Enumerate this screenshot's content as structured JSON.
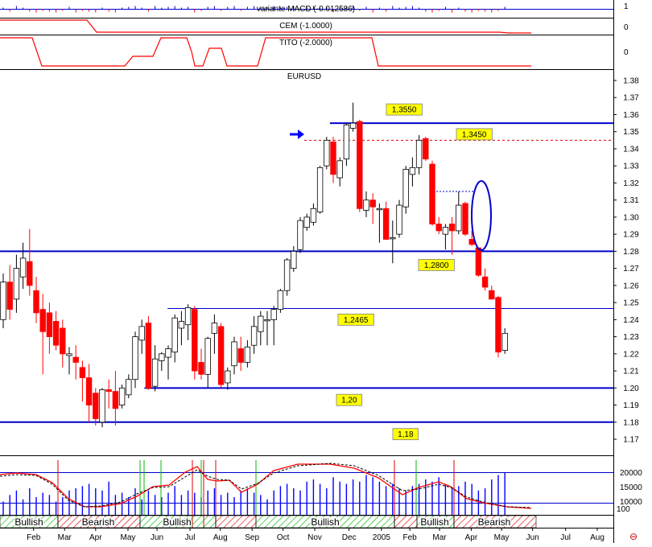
{
  "panels": {
    "macd_title": "variante MACD (-0.012586)",
    "cem_title": "CEM (-1.0000)",
    "tito_title": "TITO (-2.0000)",
    "macd_axis": [
      "1",
      "0"
    ],
    "cem_axis": [
      "0"
    ],
    "tito_axis": [
      "0"
    ],
    "main_title": "EURUSD"
  },
  "colors": {
    "up_candle": "#ffffff",
    "down_candle": "#ff0000",
    "level_line": "#0000cc",
    "resistance_dotted": "#e00000",
    "label_bg": "#ffff00",
    "ma_red": "#ff0000",
    "ma_dashed": "#000000",
    "volume": "#0000ff",
    "bullish_green": "#00bb00",
    "bearish_red": "#dd0000"
  },
  "chart_data": {
    "type": "candlestick",
    "title": "EURUSD",
    "ylim": [
      1.16,
      1.385
    ],
    "y_ticks": [
      "1.38",
      "1.37",
      "1.36",
      "1.35",
      "1.34",
      "1.33",
      "1.32",
      "1.31",
      "1.30",
      "1.29",
      "1.28",
      "1.27",
      "1.26",
      "1.25",
      "1.24",
      "1.23",
      "1.22",
      "1.21",
      "1.20",
      "1.19",
      "1.18",
      "1.17"
    ],
    "x_labels": [
      "Feb",
      "Mar",
      "Apr",
      "May",
      "Jun",
      "Jul",
      "Aug",
      "Sep",
      "Oct",
      "Nov",
      "Dec",
      "2005",
      "Feb",
      "Mar",
      "Apr",
      "May",
      "Jun",
      "Jul",
      "Aug"
    ],
    "x_label_values": [
      4.6,
      9.3,
      14.0,
      18.9,
      23.3,
      28.3,
      32.9,
      37.7,
      42.4,
      47.2,
      52.4,
      57.3,
      61.6,
      66.1,
      70.9,
      75.5,
      80.2,
      85.2,
      90.0
    ],
    "candles": [
      {
        "o": 1.24,
        "h": 1.267,
        "l": 1.235,
        "c": 1.262
      },
      {
        "o": 1.262,
        "h": 1.272,
        "l": 1.24,
        "c": 1.246
      },
      {
        "o": 1.252,
        "h": 1.278,
        "l": 1.244,
        "c": 1.27
      },
      {
        "o": 1.265,
        "h": 1.285,
        "l": 1.258,
        "c": 1.276
      },
      {
        "o": 1.274,
        "h": 1.293,
        "l": 1.254,
        "c": 1.26
      },
      {
        "o": 1.257,
        "h": 1.265,
        "l": 1.238,
        "c": 1.244
      },
      {
        "o": 1.246,
        "h": 1.255,
        "l": 1.208,
        "c": 1.233
      },
      {
        "o": 1.244,
        "h": 1.25,
        "l": 1.22,
        "c": 1.23
      },
      {
        "o": 1.239,
        "h": 1.245,
        "l": 1.222,
        "c": 1.225
      },
      {
        "o": 1.235,
        "h": 1.24,
        "l": 1.212,
        "c": 1.22
      },
      {
        "o": 1.219,
        "h": 1.224,
        "l": 1.208,
        "c": 1.22
      },
      {
        "o": 1.218,
        "h": 1.225,
        "l": 1.205,
        "c": 1.215
      },
      {
        "o": 1.212,
        "h": 1.216,
        "l": 1.192,
        "c": 1.206
      },
      {
        "o": 1.206,
        "h": 1.214,
        "l": 1.18,
        "c": 1.19
      },
      {
        "o": 1.197,
        "h": 1.2,
        "l": 1.178,
        "c": 1.182
      },
      {
        "o": 1.18,
        "h": 1.2,
        "l": 1.177,
        "c": 1.199
      },
      {
        "o": 1.199,
        "h": 1.205,
        "l": 1.188,
        "c": 1.198
      },
      {
        "o": 1.198,
        "h": 1.21,
        "l": 1.178,
        "c": 1.188
      },
      {
        "o": 1.19,
        "h": 1.202,
        "l": 1.188,
        "c": 1.2
      },
      {
        "o": 1.196,
        "h": 1.208,
        "l": 1.194,
        "c": 1.205
      },
      {
        "o": 1.205,
        "h": 1.233,
        "l": 1.2,
        "c": 1.23
      },
      {
        "o": 1.228,
        "h": 1.24,
        "l": 1.22,
        "c": 1.236
      },
      {
        "o": 1.238,
        "h": 1.242,
        "l": 1.199,
        "c": 1.2
      },
      {
        "o": 1.201,
        "h": 1.225,
        "l": 1.198,
        "c": 1.217
      },
      {
        "o": 1.216,
        "h": 1.221,
        "l": 1.21,
        "c": 1.22
      },
      {
        "o": 1.218,
        "h": 1.225,
        "l": 1.205,
        "c": 1.223
      },
      {
        "o": 1.221,
        "h": 1.243,
        "l": 1.215,
        "c": 1.241
      },
      {
        "o": 1.235,
        "h": 1.245,
        "l": 1.225,
        "c": 1.239
      },
      {
        "o": 1.237,
        "h": 1.249,
        "l": 1.228,
        "c": 1.247
      },
      {
        "o": 1.246,
        "h": 1.248,
        "l": 1.205,
        "c": 1.21
      },
      {
        "o": 1.215,
        "h": 1.223,
        "l": 1.205,
        "c": 1.208
      },
      {
        "o": 1.208,
        "h": 1.23,
        "l": 1.2,
        "c": 1.229
      },
      {
        "o": 1.232,
        "h": 1.243,
        "l": 1.22,
        "c": 1.238
      },
      {
        "o": 1.236,
        "h": 1.238,
        "l": 1.2,
        "c": 1.202
      },
      {
        "o": 1.203,
        "h": 1.212,
        "l": 1.199,
        "c": 1.21
      },
      {
        "o": 1.213,
        "h": 1.23,
        "l": 1.208,
        "c": 1.227
      },
      {
        "o": 1.223,
        "h": 1.23,
        "l": 1.21,
        "c": 1.215
      },
      {
        "o": 1.215,
        "h": 1.228,
        "l": 1.212,
        "c": 1.224
      },
      {
        "o": 1.225,
        "h": 1.242,
        "l": 1.22,
        "c": 1.236
      },
      {
        "o": 1.233,
        "h": 1.245,
        "l": 1.225,
        "c": 1.242
      },
      {
        "o": 1.24,
        "h": 1.245,
        "l": 1.225,
        "c": 1.24
      },
      {
        "o": 1.24,
        "h": 1.248,
        "l": 1.225,
        "c": 1.246
      },
      {
        "o": 1.246,
        "h": 1.258,
        "l": 1.244,
        "c": 1.257
      },
      {
        "o": 1.257,
        "h": 1.276,
        "l": 1.254,
        "c": 1.275
      },
      {
        "o": 1.27,
        "h": 1.283,
        "l": 1.268,
        "c": 1.28
      },
      {
        "o": 1.281,
        "h": 1.3,
        "l": 1.279,
        "c": 1.298
      },
      {
        "o": 1.294,
        "h": 1.302,
        "l": 1.292,
        "c": 1.3
      },
      {
        "o": 1.297,
        "h": 1.308,
        "l": 1.295,
        "c": 1.305
      },
      {
        "o": 1.303,
        "h": 1.33,
        "l": 1.302,
        "c": 1.329
      },
      {
        "o": 1.33,
        "h": 1.347,
        "l": 1.328,
        "c": 1.345
      },
      {
        "o": 1.344,
        "h": 1.347,
        "l": 1.32,
        "c": 1.325
      },
      {
        "o": 1.323,
        "h": 1.335,
        "l": 1.318,
        "c": 1.333
      },
      {
        "o": 1.334,
        "h": 1.355,
        "l": 1.33,
        "c": 1.354
      },
      {
        "o": 1.352,
        "h": 1.367,
        "l": 1.35,
        "c": 1.355
      },
      {
        "o": 1.356,
        "h": 1.357,
        "l": 1.303,
        "c": 1.305
      },
      {
        "o": 1.304,
        "h": 1.315,
        "l": 1.3,
        "c": 1.31
      },
      {
        "o": 1.31,
        "h": 1.314,
        "l": 1.296,
        "c": 1.306
      },
      {
        "o": 1.305,
        "h": 1.308,
        "l": 1.285,
        "c": 1.305
      },
      {
        "o": 1.305,
        "h": 1.309,
        "l": 1.287,
        "c": 1.287
      },
      {
        "o": 1.288,
        "h": 1.298,
        "l": 1.273,
        "c": 1.288
      },
      {
        "o": 1.29,
        "h": 1.31,
        "l": 1.288,
        "c": 1.307
      },
      {
        "o": 1.306,
        "h": 1.33,
        "l": 1.302,
        "c": 1.328
      },
      {
        "o": 1.325,
        "h": 1.335,
        "l": 1.318,
        "c": 1.329
      },
      {
        "o": 1.329,
        "h": 1.348,
        "l": 1.325,
        "c": 1.345
      },
      {
        "o": 1.346,
        "h": 1.347,
        "l": 1.333,
        "c": 1.334
      },
      {
        "o": 1.331,
        "h": 1.333,
        "l": 1.295,
        "c": 1.296
      },
      {
        "o": 1.296,
        "h": 1.3,
        "l": 1.29,
        "c": 1.292
      },
      {
        "o": 1.29,
        "h": 1.296,
        "l": 1.281,
        "c": 1.294
      },
      {
        "o": 1.296,
        "h": 1.3,
        "l": 1.278,
        "c": 1.292
      },
      {
        "o": 1.292,
        "h": 1.315,
        "l": 1.29,
        "c": 1.307
      },
      {
        "o": 1.308,
        "h": 1.309,
        "l": 1.289,
        "c": 1.29
      },
      {
        "o": 1.287,
        "h": 1.292,
        "l": 1.283,
        "c": 1.284
      },
      {
        "o": 1.282,
        "h": 1.282,
        "l": 1.265,
        "c": 1.266
      },
      {
        "o": 1.265,
        "h": 1.27,
        "l": 1.257,
        "c": 1.259
      },
      {
        "o": 1.257,
        "h": 1.26,
        "l": 1.252,
        "c": 1.252
      },
      {
        "o": 1.253,
        "h": 1.254,
        "l": 1.218,
        "c": 1.221
      },
      {
        "o": 1.222,
        "h": 1.235,
        "l": 1.22,
        "c": 1.232
      }
    ],
    "levels": [
      {
        "value": 1.355,
        "label": "1,3550",
        "label_value": 1.363,
        "x_start": 49.5,
        "style": "solid"
      },
      {
        "value": 1.28,
        "label": "1,2800",
        "label_value": 1.272,
        "x_start": 0,
        "style": "solid"
      },
      {
        "value": 1.2465,
        "label": "1,2465",
        "label_value": 1.24,
        "x_start": 24.9,
        "style": "thin"
      },
      {
        "value": 1.2,
        "label": "1,20",
        "label_value": 1.193,
        "x_start": 21.4,
        "style": "solid"
      },
      {
        "value": 1.18,
        "label": "1,18",
        "label_value": 1.173,
        "x_start": 0,
        "style": "solid"
      }
    ],
    "resistance": {
      "value": 1.345,
      "label": "1,3450"
    }
  },
  "oscillator": {
    "axis": [
      "20000",
      "15000",
      "10000",
      "100"
    ],
    "volume": [
      30,
      45,
      55,
      35,
      60,
      40,
      50,
      45,
      30,
      40,
      55,
      60,
      65,
      70,
      60,
      55,
      75,
      45,
      50,
      40,
      60,
      35,
      55,
      45,
      40,
      50,
      65,
      45,
      55,
      50,
      40,
      55,
      60,
      45,
      50,
      40,
      55,
      60,
      50,
      45,
      35,
      55,
      65,
      70,
      60,
      55,
      75,
      80,
      70,
      60,
      85,
      75,
      70,
      80,
      75,
      90,
      85,
      75,
      65,
      70,
      60,
      55,
      65,
      70,
      80,
      75,
      85,
      70,
      60,
      65,
      75,
      70,
      55,
      60,
      80,
      90,
      95
    ]
  },
  "footer": {
    "sentiment": [
      "Bullish",
      "Bearish",
      "Bullish",
      "Bullish",
      "Bullish",
      "Bearish"
    ]
  },
  "misc": {
    "close_icon_glyph": "⊖"
  }
}
